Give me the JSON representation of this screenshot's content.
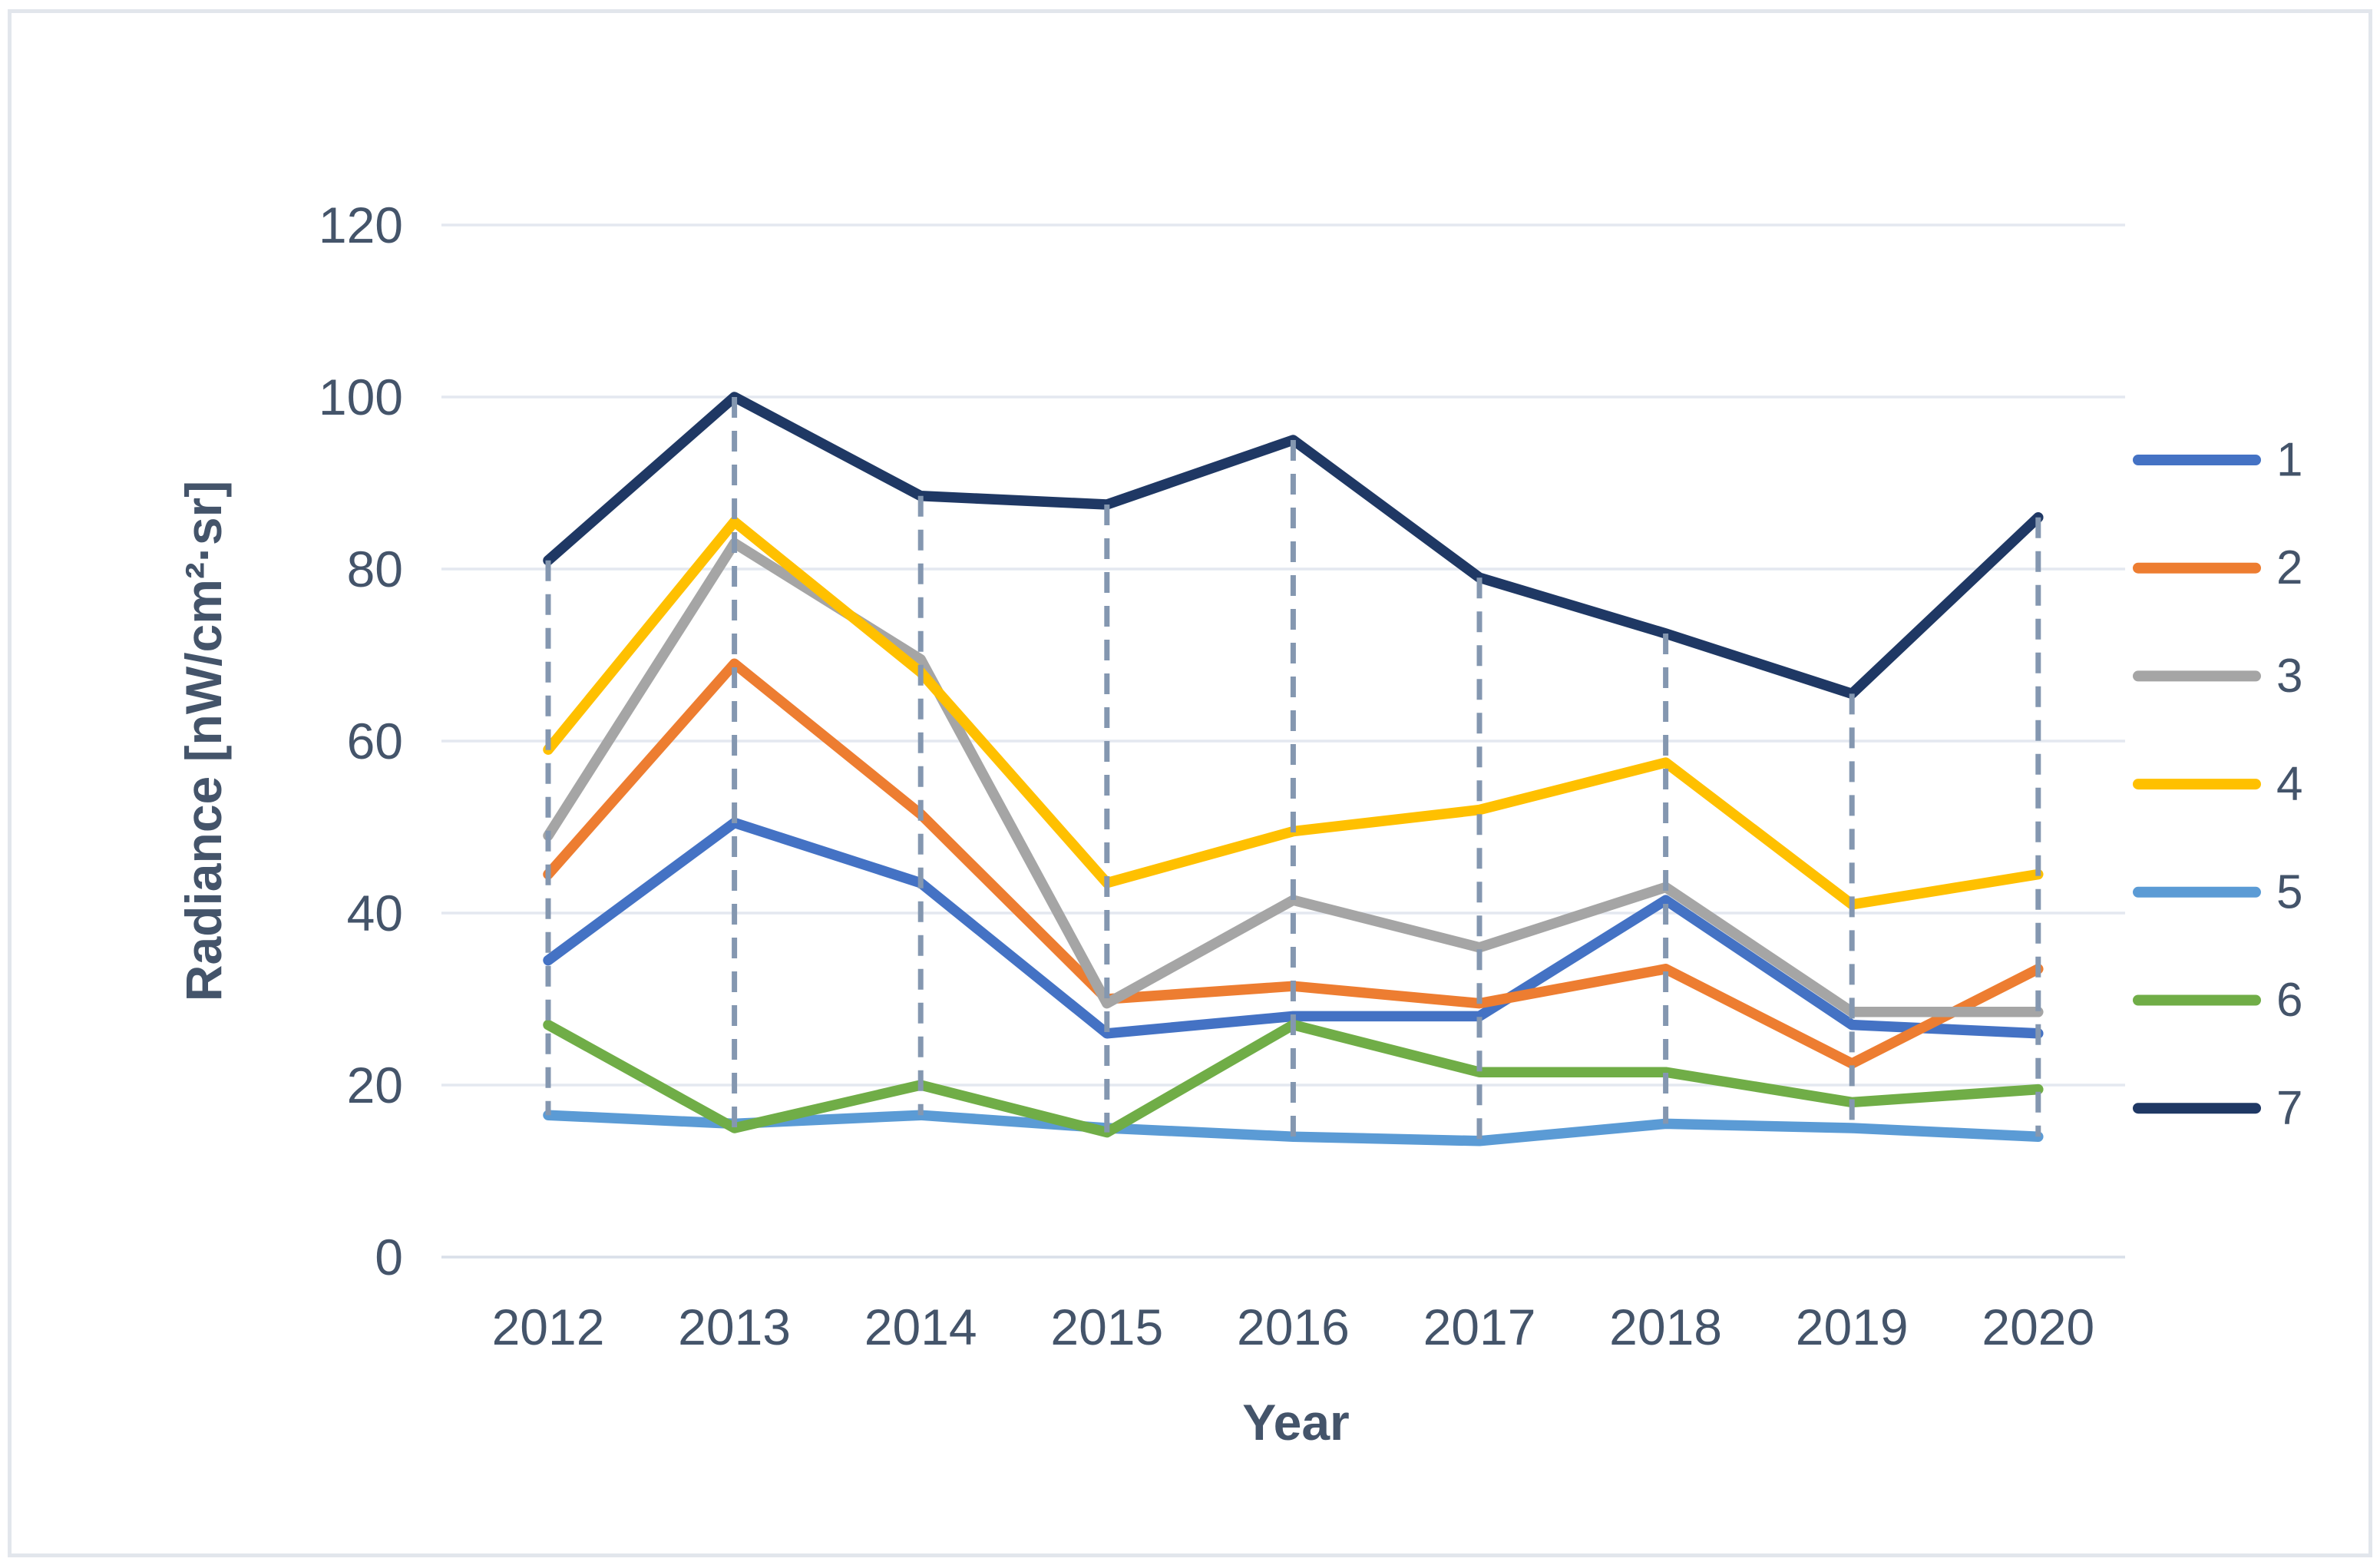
{
  "style": {
    "background": "#FFFFFF",
    "frame_border": "#E2E6EC",
    "gridline": "#E4E8F0",
    "gridline_zero": "#D9DFE9",
    "dropline": "#8497B0",
    "axis_text": "#44546A"
  },
  "chart_data": {
    "type": "line",
    "title": "",
    "xlabel": "Year",
    "ylabel": "Radiance  [nW/cm²·sr]",
    "categories": [
      "2012",
      "2013",
      "2014",
      "2015",
      "2016",
      "2017",
      "2018",
      "2019",
      "2020"
    ],
    "y_ticks": [
      0,
      20,
      40,
      60,
      80,
      100,
      120
    ],
    "ylim": [
      0,
      120
    ],
    "grid": "horizontal",
    "legend_position": "right",
    "high_low_lines": true,
    "series": [
      {
        "name": "1",
        "color": "#4472C4",
        "values": [
          34.5,
          50.5,
          43.5,
          26,
          28,
          28,
          41.5,
          27,
          26
        ]
      },
      {
        "name": "2",
        "color": "#ED7D31",
        "values": [
          44.5,
          69,
          51.5,
          30,
          31.5,
          29.5,
          33.5,
          22.5,
          33.5
        ]
      },
      {
        "name": "3",
        "color": "#A5A5A5",
        "values": [
          49,
          83,
          69.5,
          29.5,
          41.5,
          36,
          43,
          28.5,
          28.5
        ]
      },
      {
        "name": "4",
        "color": "#FFC000",
        "values": [
          59,
          85.5,
          68,
          43.5,
          49.5,
          52,
          57.5,
          41,
          44.5
        ]
      },
      {
        "name": "5",
        "color": "#5B9BD5",
        "values": [
          16.5,
          15.5,
          16.5,
          15,
          14,
          13.5,
          15.5,
          15,
          14
        ]
      },
      {
        "name": "6",
        "color": "#70AD47",
        "values": [
          27,
          15,
          20,
          14.5,
          27,
          21.5,
          21.5,
          18,
          19.5
        ]
      },
      {
        "name": "7",
        "color": "#1F3864",
        "values": [
          81,
          100,
          88.5,
          87.5,
          95,
          79,
          72.5,
          65.5,
          86
        ]
      }
    ]
  }
}
